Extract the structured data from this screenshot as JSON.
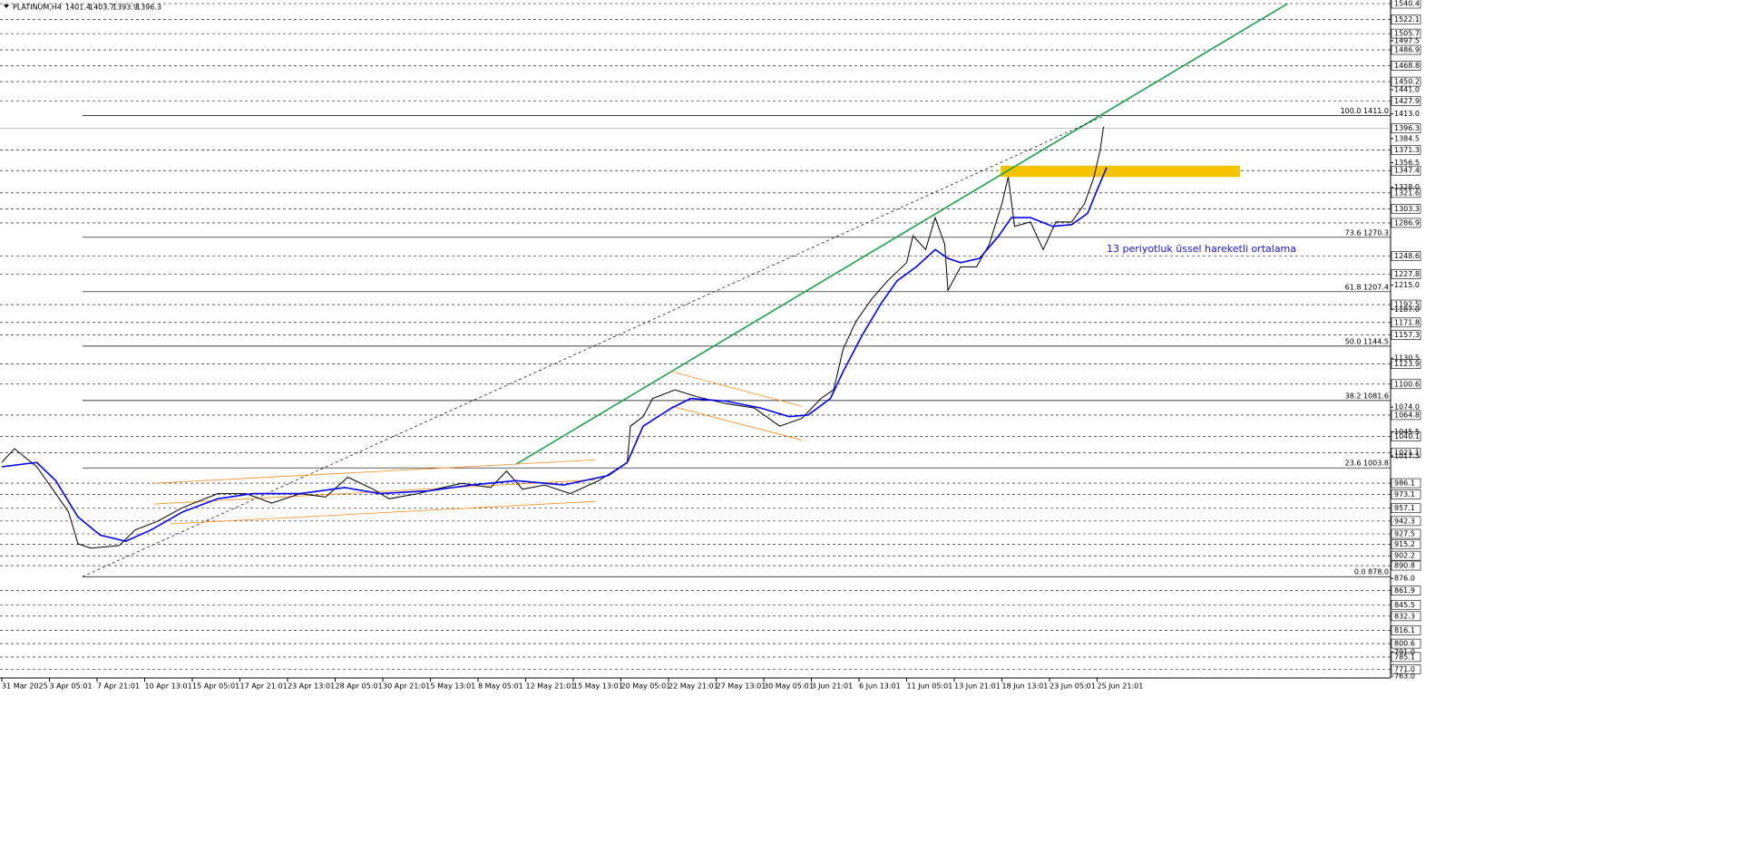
{
  "chart_data": {
    "type": "line",
    "header": {
      "symbol": "PLATINUM,H4",
      "ohlc": [
        1401.4,
        1403.7,
        1393.9,
        1396.3
      ]
    },
    "annotation": "13 periyotluk üssel hareketli ortalama",
    "xlim": [
      0,
      437
    ],
    "ylim": [
      763.0,
      1540.4
    ],
    "xticks": [
      {
        "value": 0,
        "label": "31 Mar 2025"
      },
      {
        "value": 15,
        "label": "3 Apr 05:01"
      },
      {
        "value": 30,
        "label": "7 Apr 21:01"
      },
      {
        "value": 45,
        "label": "10 Apr 13:01"
      },
      {
        "value": 60,
        "label": "15 Apr 05:01"
      },
      {
        "value": 75,
        "label": "17 Apr 21:01"
      },
      {
        "value": 90,
        "label": "23 Apr 13:01"
      },
      {
        "value": 105,
        "label": "28 Apr 05:01"
      },
      {
        "value": 120,
        "label": "30 Apr 21:01"
      },
      {
        "value": 135,
        "label": "5 May 13:01"
      },
      {
        "value": 150,
        "label": "8 May 05:01"
      },
      {
        "value": 165,
        "label": "12 May 21:01"
      },
      {
        "value": 180,
        "label": "15 May 13:01"
      },
      {
        "value": 195,
        "label": "20 May 05:01"
      },
      {
        "value": 210,
        "label": "22 May 21:01"
      },
      {
        "value": 225,
        "label": "27 May 13:01"
      },
      {
        "value": 240,
        "label": "30 May 05:01"
      },
      {
        "value": 255,
        "label": "3 Jun 21:01"
      },
      {
        "value": 270,
        "label": "6 Jun 13:01"
      },
      {
        "value": 285,
        "label": "11 Jun 05:01"
      },
      {
        "value": 300,
        "label": "13 Jun 21:01"
      },
      {
        "value": 315,
        "label": "18 Jun 13:01"
      },
      {
        "value": 330,
        "label": "23 Jun 05:01"
      },
      {
        "value": 345,
        "label": "25 Jun 21:01"
      }
    ],
    "yticks": [
      {
        "value": 1497.5,
        "label": "1497.5"
      },
      {
        "value": 1441,
        "label": "1441.0"
      },
      {
        "value": 1413,
        "label": "1413.0"
      },
      1384.5,
      1356.5,
      {
        "value": 1328,
        "label": "1328.0"
      },
      {
        "value": 1215,
        "label": "1215.0"
      },
      {
        "value": 1187,
        "label": "1187.0"
      },
      1130.5,
      {
        "value": 1074,
        "label": "1074.0"
      },
      1045.5,
      1017.5,
      {
        "value": 876,
        "label": "876.0"
      },
      {
        "value": 791,
        "label": "791.0"
      },
      {
        "value": 763,
        "label": "763.0"
      }
    ],
    "levels": [
      1540.4,
      1522.1,
      1505.7,
      1486.9,
      1468.8,
      1450.2,
      1427.9,
      1371.3,
      1347.4,
      1321.6,
      1303.3,
      1286.9,
      1248.6,
      1227.8,
      1192.5,
      1171.8,
      1157.3,
      1123.9,
      1100.6,
      1064.8,
      1040.1,
      1021.1,
      986.1,
      973.1,
      957.1,
      942.3,
      927.5,
      915.2,
      902.2,
      890.8,
      861.9,
      845.5,
      832.3,
      816.1,
      800.6,
      785.1,
      {
        "value": 771,
        "label": "771.0"
      }
    ],
    "current_price": 1396.3,
    "fib": {
      "start": 25.4,
      "levels": [
        {
          "value": 1411,
          "label": "100.0 1411.0"
        },
        {
          "value": 1270.3,
          "label": "73.6 1270.3"
        },
        {
          "value": 1207.4,
          "label": "61.8 1207.4"
        },
        {
          "value": 1144.5,
          "label": "50.0 1144.5"
        },
        {
          "value": 1081.6,
          "label": "38.2 1081.6"
        },
        {
          "value": 1003.8,
          "label": "23.6 1003.8"
        },
        {
          "value": 878,
          "label": "0.0 878.0"
        }
      ]
    },
    "series": [
      {
        "name": "PLATINUM",
        "color": "#000000",
        "x": [
          0,
          4,
          11,
          17,
          21,
          24,
          28,
          37,
          42,
          49,
          57,
          68,
          77,
          85,
          94,
          102,
          109,
          117,
          122,
          131,
          139,
          145,
          154,
          159,
          164,
          171,
          179,
          188,
          197,
          198,
          202,
          205,
          212,
          219,
          228,
          237,
          245,
          252,
          258,
          262,
          265,
          269,
          274,
          279,
          285,
          287,
          291,
          294,
          297,
          298,
          302,
          307,
          311,
          315,
          317,
          319,
          324,
          328,
          332,
          337,
          341,
          344,
          346,
          347
        ],
        "values": [
          1010,
          1026,
          1005,
          974,
          953,
          916,
          911,
          914,
          932,
          942,
          958,
          974,
          974,
          963,
          974,
          970,
          993,
          979,
          968,
          974,
          981,
          986,
          981,
          1000,
          979,
          984,
          974,
          989,
          1010,
          1052,
          1063,
          1084,
          1094,
          1086,
          1078,
          1073,
          1052,
          1061,
          1084,
          1094,
          1141,
          1173,
          1199,
          1220,
          1241,
          1272,
          1256,
          1293,
          1262,
          1209,
          1236,
          1236,
          1262,
          1309,
          1340,
          1283,
          1288,
          1256,
          1288,
          1288,
          1309,
          1340,
          1372,
          1398
        ]
      },
      {
        "name": "EMA 13",
        "color": "#0000ff",
        "x": [
          0,
          11,
          17,
          24,
          31,
          39,
          47,
          57,
          68,
          79,
          94,
          108,
          119,
          134,
          148,
          162,
          177,
          191,
          197,
          202,
          211,
          217,
          228,
          239,
          248,
          254,
          261,
          265,
          271,
          277,
          282,
          288,
          294,
          298,
          302,
          308,
          314,
          318,
          324,
          331,
          337,
          342,
          345,
          348
        ],
        "values": [
          1005,
          1010,
          989,
          947,
          926,
          919,
          932,
          953,
          968,
          974,
          974,
          981,
          974,
          977,
          984,
          989,
          984,
          995,
          1010,
          1052,
          1073,
          1084,
          1081,
          1073,
          1063,
          1065,
          1084,
          1115,
          1157,
          1194,
          1220,
          1236,
          1256,
          1246,
          1241,
          1246,
          1272,
          1293,
          1293,
          1283,
          1285,
          1298,
          1325,
          1351
        ]
      }
    ],
    "drawings": [
      {
        "color": "#1aa34a",
        "width": 1.6,
        "points": [
          [
            162,
            1008
          ],
          [
            405,
            1540.4
          ]
        ]
      },
      {
        "color": "#000000",
        "width": 0.7,
        "dash": true,
        "points": [
          [
            25.4,
            878
          ],
          [
            347.4,
            1411
          ]
        ]
      },
      {
        "color": "#ff8c1a",
        "width": 0.8,
        "points": [
          [
            48,
            986
          ],
          [
            187,
            1013
          ]
        ]
      },
      {
        "color": "#ff8c1a",
        "width": 0.8,
        "points": [
          [
            48,
            962
          ],
          [
            187,
            990
          ]
        ]
      },
      {
        "color": "#ff8c1a",
        "width": 0.8,
        "points": [
          [
            53,
            939
          ],
          [
            187,
            965
          ]
        ]
      },
      {
        "color": "#ff8c1a",
        "width": 0.8,
        "points": [
          [
            211,
            1115
          ],
          [
            252,
            1075
          ]
        ]
      },
      {
        "color": "#ff8c1a",
        "width": 0.8,
        "points": [
          [
            211,
            1075
          ],
          [
            252,
            1036
          ]
        ]
      }
    ],
    "zone": {
      "color": "#f5c400",
      "x": [
        314.6,
        390
      ],
      "y": [
        1340,
        1353
      ]
    }
  }
}
